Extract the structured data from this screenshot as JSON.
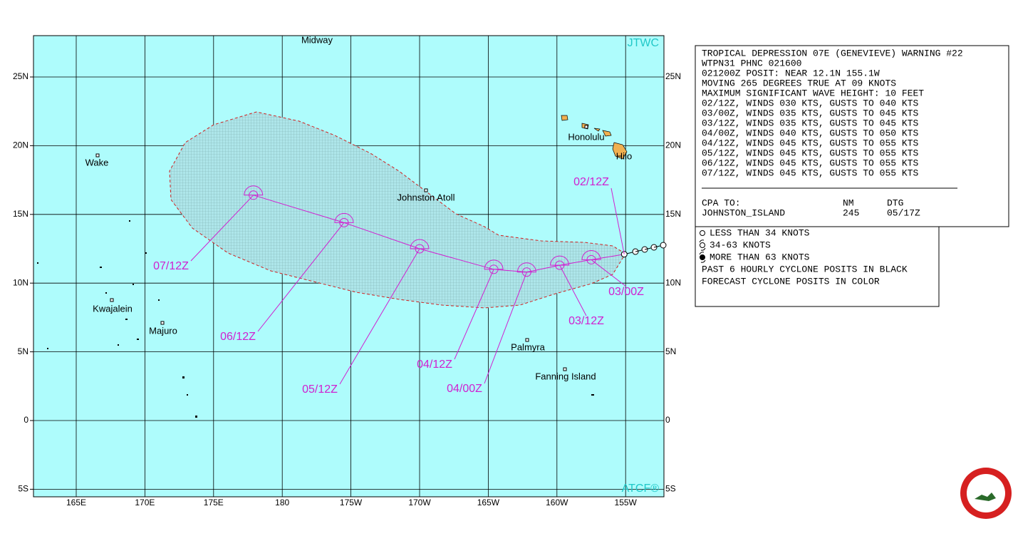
{
  "map": {
    "corner_labels": {
      "top": "JTWC",
      "bottom": "ATCF®"
    },
    "lat_labels": [
      "25N",
      "20N",
      "15N",
      "10N",
      "5N",
      "0",
      "5S"
    ],
    "lon_labels": [
      "165E",
      "170E",
      "175E",
      "180",
      "175W",
      "170W",
      "165W",
      "160W",
      "155W"
    ],
    "places": [
      "Midway",
      "Wake",
      "Johnston Atoll",
      "Honolulu",
      "Hilo",
      "Kwajalein",
      "Majuro",
      "Palmyra",
      "Fanning Island"
    ],
    "forecast": [
      {
        "label": "02/12Z",
        "lat": 12.1,
        "lon": -155.1
      },
      {
        "label": "03/00Z",
        "lat": 11.7,
        "lon": -157.5
      },
      {
        "label": "03/12Z",
        "lat": 11.3,
        "lon": -159.8
      },
      {
        "label": "04/00Z",
        "lat": 10.8,
        "lon": -162.2
      },
      {
        "label": "04/12Z",
        "lat": 11.0,
        "lon": -164.6
      },
      {
        "label": "05/12Z",
        "lat": 12.5,
        "lon": -170.0
      },
      {
        "label": "06/12Z",
        "lat": 14.4,
        "lon": -175.5
      },
      {
        "label": "07/12Z",
        "lat": 16.4,
        "lon": 177.9
      }
    ]
  },
  "warning": {
    "lines": [
      "TROPICAL DEPRESSION 07E (GENEVIEVE) WARNING #22",
      "WTPN31 PHNC 021600",
      "021200Z POSIT: NEAR 12.1N 155.1W",
      "MOVING 265 DEGREES TRUE AT 09 KNOTS",
      "MAXIMUM SIGNIFICANT WAVE HEIGHT: 10 FEET",
      "02/12Z, WINDS 030 KTS, GUSTS TO 040 KTS",
      "03/00Z, WINDS 035 KTS, GUSTS TO 045 KTS",
      "03/12Z, WINDS 035 KTS, GUSTS TO 045 KTS",
      "04/00Z, WINDS 040 KTS, GUSTS TO 050 KTS",
      "04/12Z, WINDS 045 KTS, GUSTS TO 055 KTS",
      "05/12Z, WINDS 045 KTS, GUSTS TO 055 KTS",
      "06/12Z, WINDS 045 KTS, GUSTS TO 055 KTS",
      "07/12Z, WINDS 045 KTS, GUSTS TO 055 KTS"
    ],
    "cpa": {
      "header": [
        "CPA TO:",
        "NM",
        "DTG"
      ],
      "row": [
        "JOHNSTON_ISLAND",
        245,
        "05/17Z"
      ]
    }
  },
  "legend": {
    "lines": [
      "LESS THAN 34 KNOTS",
      "34-63 KNOTS",
      "MORE THAN 63 KNOTS",
      "PAST 6 HOURLY CYCLONE POSITS IN BLACK",
      "FORECAST CYCLONE POSITS IN COLOR"
    ]
  }
}
